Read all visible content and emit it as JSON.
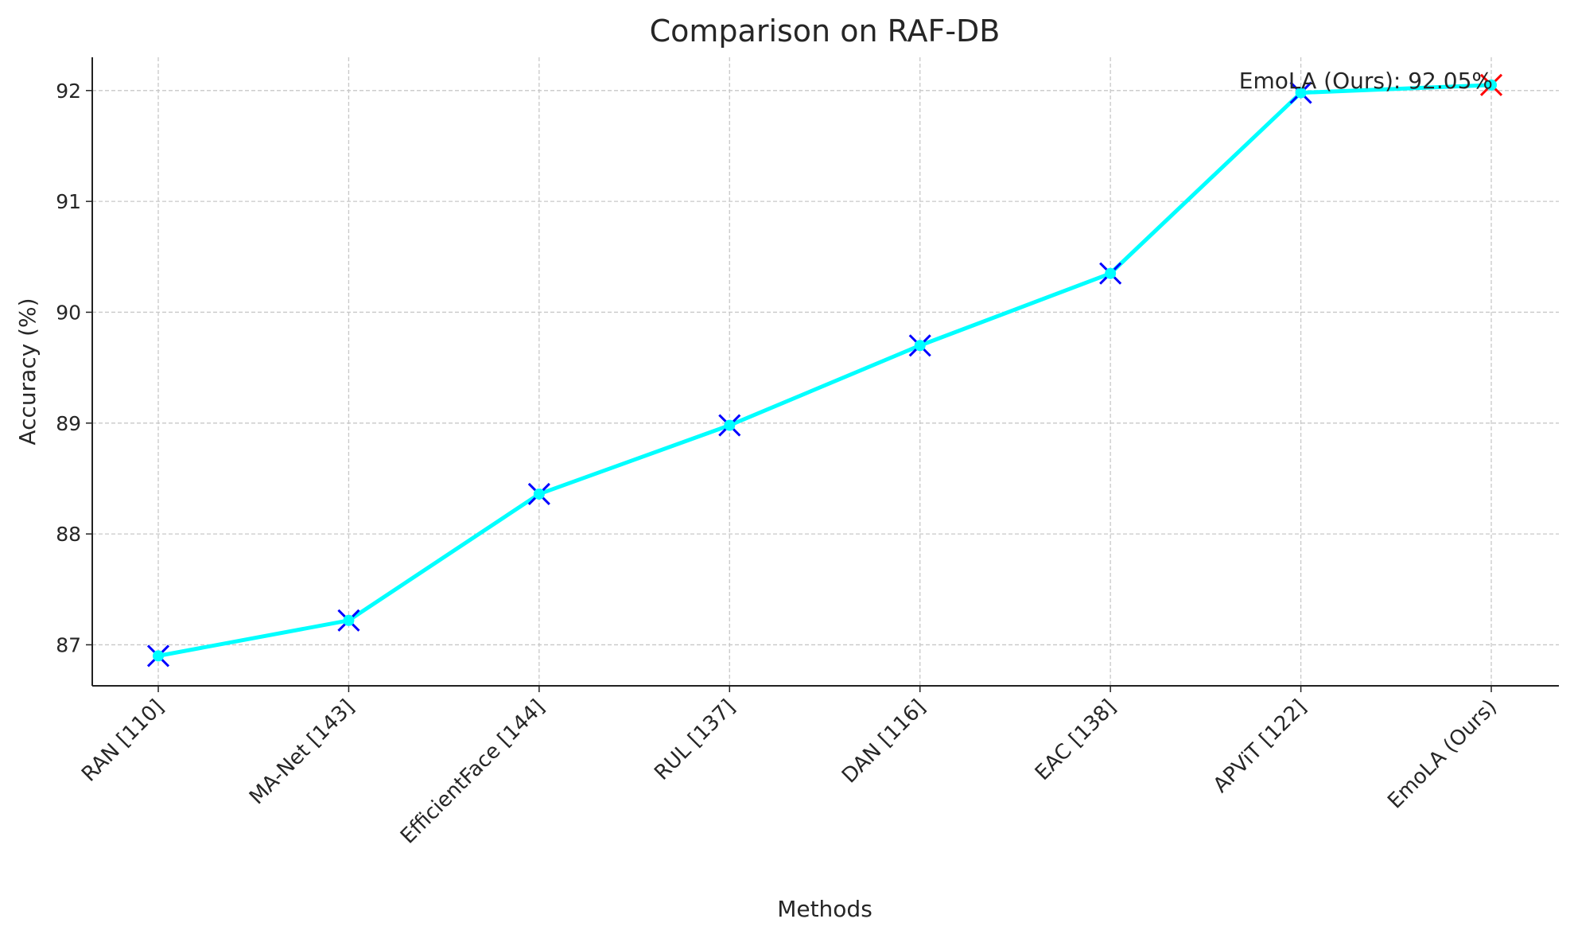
{
  "chart_data": {
    "type": "line",
    "title": "Comparison on RAF-DB",
    "xlabel": "Methods",
    "ylabel": "Accuracy (%)",
    "categories": [
      "RAN [110]",
      "MA-Net [143]",
      "EfficientFace [144]",
      "RUL [137]",
      "DAN [116]",
      "EAC [138]",
      "APViT [122]",
      "EmoLA (Ours)"
    ],
    "values": [
      86.9,
      87.22,
      88.36,
      88.98,
      89.7,
      90.35,
      91.98,
      92.05
    ],
    "ylim": [
      86.63,
      92.3
    ],
    "yticks": [
      87,
      88,
      89,
      90,
      91,
      92
    ],
    "grid": true,
    "line_color": "#00ffff",
    "marker_color": "#0000ff",
    "highlight_marker_color": "#ff0000",
    "annotation": "EmoLA (Ours): 92.05%"
  }
}
